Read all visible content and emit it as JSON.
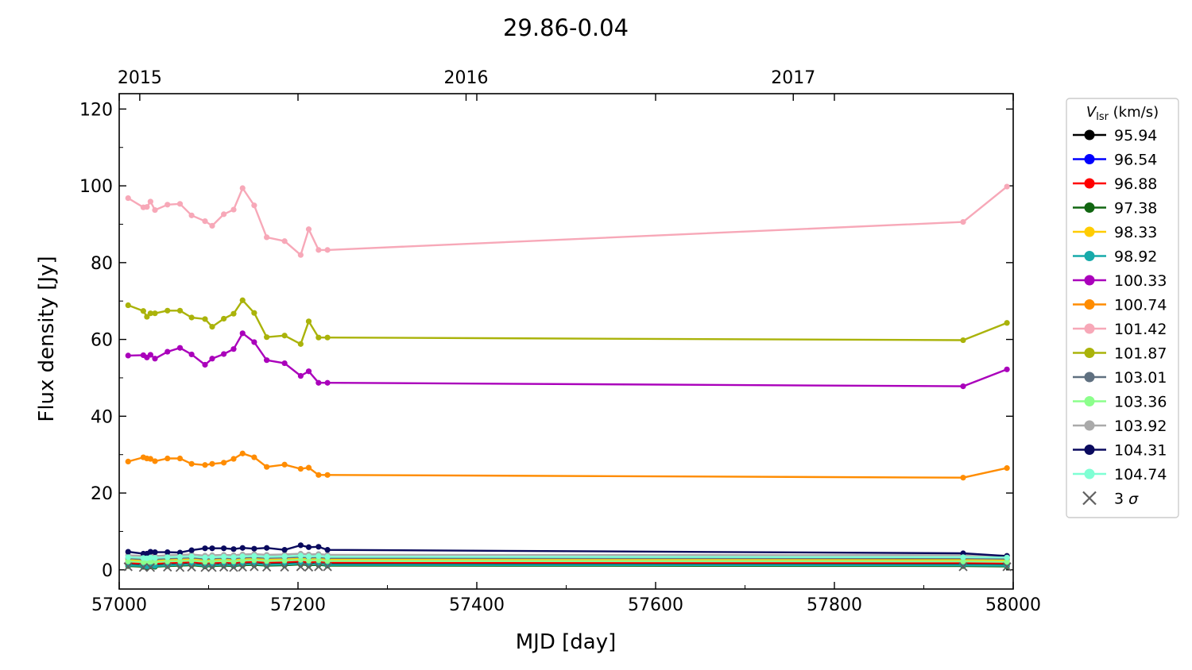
{
  "chart_data": {
    "type": "line",
    "title": "29.86-0.04",
    "xlabel": "MJD [day]",
    "ylabel": "Flux density [Jy]",
    "xlim": [
      57000,
      58000
    ],
    "ylim": [
      -5,
      124
    ],
    "xticks": [
      57000,
      57200,
      57400,
      57600,
      57800,
      58000
    ],
    "yticks": [
      0,
      20,
      40,
      60,
      80,
      100,
      120
    ],
    "top_axis": {
      "ticks": [
        {
          "label": "2015",
          "mjd": 57023
        },
        {
          "label": "2016",
          "mjd": 57388
        },
        {
          "label": "2017",
          "mjd": 57754
        }
      ]
    },
    "grid": false,
    "legend": {
      "title_prefix": "V",
      "title_subscript": "lsr",
      "title_suffix": " (km/s)",
      "placement": "outside-right",
      "sigma_label_prefix": "3 ",
      "sigma_label_symbol": "σ"
    },
    "x": [
      57010,
      57027,
      57031,
      57035,
      57040,
      57054,
      57068,
      57081,
      57096,
      57104,
      57117,
      57128,
      57138,
      57151,
      57165,
      57185,
      57203,
      57212,
      57223,
      57233,
      57944,
      57993
    ],
    "series": [
      {
        "name": "95.94",
        "color": "#000000",
        "values": [
          1.5,
          1.3,
          1.2,
          1.4,
          1.3,
          1.5,
          1.6,
          1.7,
          1.4,
          1.5,
          1.6,
          1.5,
          1.7,
          1.8,
          1.6,
          1.7,
          1.9,
          1.7,
          1.8,
          1.6,
          1.5,
          1.4
        ]
      },
      {
        "name": "96.54",
        "color": "#0000ff",
        "values": [
          2.0,
          1.8,
          1.7,
          1.9,
          1.8,
          2.0,
          2.1,
          2.2,
          1.9,
          2.0,
          2.1,
          2.0,
          2.2,
          2.3,
          2.1,
          2.2,
          2.4,
          2.2,
          2.3,
          2.1,
          2.0,
          1.9
        ]
      },
      {
        "name": "96.88",
        "color": "#ff0000",
        "values": [
          1.8,
          1.6,
          1.5,
          1.7,
          1.6,
          1.8,
          1.9,
          2.0,
          1.7,
          1.8,
          1.9,
          1.8,
          2.0,
          2.1,
          1.9,
          2.0,
          2.2,
          2.0,
          2.1,
          1.9,
          1.8,
          1.7
        ]
      },
      {
        "name": "97.38",
        "color": "#116611",
        "values": [
          1.0,
          0.8,
          0.7,
          0.9,
          0.8,
          1.0,
          1.1,
          1.2,
          0.9,
          1.0,
          1.1,
          1.0,
          1.2,
          1.3,
          1.1,
          1.2,
          1.4,
          1.2,
          1.3,
          1.1,
          1.0,
          0.9
        ]
      },
      {
        "name": "98.33",
        "color": "#ffcc00",
        "values": [
          2.5,
          2.3,
          2.2,
          2.4,
          2.3,
          2.5,
          2.6,
          2.7,
          2.4,
          2.5,
          2.6,
          2.5,
          2.7,
          2.8,
          2.6,
          2.7,
          2.9,
          2.7,
          2.8,
          2.6,
          2.5,
          2.4
        ]
      },
      {
        "name": "98.92",
        "color": "#17aaaa",
        "values": [
          1.2,
          1.0,
          0.9,
          1.1,
          1.0,
          1.2,
          1.3,
          1.4,
          1.1,
          1.2,
          1.3,
          1.2,
          1.4,
          1.5,
          1.3,
          1.4,
          1.6,
          1.4,
          1.5,
          1.3,
          1.2,
          1.1
        ]
      },
      {
        "name": "100.33",
        "color": "#aa00bb",
        "values": [
          55.8,
          55.9,
          55.3,
          56.0,
          55.0,
          56.8,
          57.8,
          56.1,
          53.4,
          55.0,
          56.2,
          57.5,
          61.6,
          59.3,
          54.6,
          53.8,
          50.5,
          51.7,
          48.7,
          48.7,
          47.8,
          52.2
        ]
      },
      {
        "name": "100.74",
        "color": "#ff8c00",
        "values": [
          28.2,
          29.3,
          29.0,
          28.9,
          28.3,
          29.0,
          29.0,
          27.6,
          27.3,
          27.6,
          27.9,
          28.9,
          30.3,
          29.3,
          26.8,
          27.4,
          26.3,
          26.6,
          24.7,
          24.7,
          24.0,
          26.5
        ]
      },
      {
        "name": "101.42",
        "color": "#f7a8b8",
        "values": [
          96.8,
          94.4,
          94.5,
          95.9,
          93.7,
          95.1,
          95.3,
          92.3,
          90.8,
          89.6,
          92.6,
          93.8,
          99.4,
          94.9,
          86.6,
          85.6,
          82.0,
          88.7,
          83.3,
          83.3,
          90.6,
          99.8
        ]
      },
      {
        "name": "101.87",
        "color": "#aab30a",
        "values": [
          68.9,
          67.4,
          65.9,
          66.8,
          66.8,
          67.5,
          67.5,
          65.7,
          65.3,
          63.3,
          65.4,
          66.7,
          70.2,
          66.9,
          60.6,
          61.0,
          58.8,
          64.7,
          60.5,
          60.5,
          59.8,
          64.3
        ]
      },
      {
        "name": "103.01",
        "color": "#5f7080",
        "values": [
          3.0,
          2.8,
          2.7,
          2.9,
          2.8,
          3.0,
          3.1,
          3.2,
          2.9,
          3.0,
          3.1,
          3.0,
          3.2,
          3.3,
          3.1,
          3.2,
          3.4,
          3.2,
          3.3,
          3.1,
          3.0,
          2.9
        ]
      },
      {
        "name": "103.36",
        "color": "#8cff8c",
        "values": [
          2.2,
          2.0,
          1.9,
          2.1,
          2.0,
          2.2,
          2.3,
          2.4,
          2.1,
          2.2,
          2.3,
          2.2,
          2.4,
          2.5,
          2.3,
          2.4,
          2.6,
          2.4,
          2.5,
          2.3,
          2.2,
          2.1
        ]
      },
      {
        "name": "103.92",
        "color": "#aaaaaa",
        "values": [
          3.8,
          3.6,
          3.5,
          3.7,
          3.6,
          3.8,
          3.9,
          4.0,
          3.7,
          3.8,
          3.9,
          3.8,
          4.0,
          4.1,
          3.9,
          4.0,
          4.2,
          4.0,
          4.1,
          3.9,
          3.8,
          3.7
        ]
      },
      {
        "name": "104.31",
        "color": "#0a0a5e",
        "values": [
          4.7,
          4.2,
          4.2,
          4.7,
          4.6,
          4.6,
          4.5,
          5.1,
          5.6,
          5.6,
          5.6,
          5.4,
          5.7,
          5.5,
          5.7,
          5.2,
          6.4,
          5.9,
          6.0,
          5.2,
          4.3,
          3.6
        ]
      },
      {
        "name": "104.74",
        "color": "#7fffd4",
        "values": [
          3.3,
          3.1,
          3.0,
          3.2,
          3.1,
          3.3,
          3.4,
          3.5,
          3.2,
          3.3,
          3.4,
          3.3,
          3.5,
          3.6,
          3.4,
          3.5,
          3.7,
          3.5,
          3.6,
          3.4,
          3.3,
          3.2
        ]
      }
    ],
    "sigma_markers": {
      "color": "#606060",
      "x": [
        57010,
        57027,
        57035,
        57054,
        57068,
        57081,
        57096,
        57104,
        57117,
        57128,
        57138,
        57151,
        57165,
        57185,
        57203,
        57212,
        57223,
        57233,
        57944,
        57993
      ],
      "values": [
        0.8,
        0.6,
        0.6,
        0.7,
        0.6,
        0.7,
        0.6,
        0.6,
        0.7,
        0.6,
        0.7,
        0.8,
        0.7,
        0.7,
        0.8,
        0.7,
        0.8,
        0.8,
        0.8,
        0.8
      ]
    }
  }
}
